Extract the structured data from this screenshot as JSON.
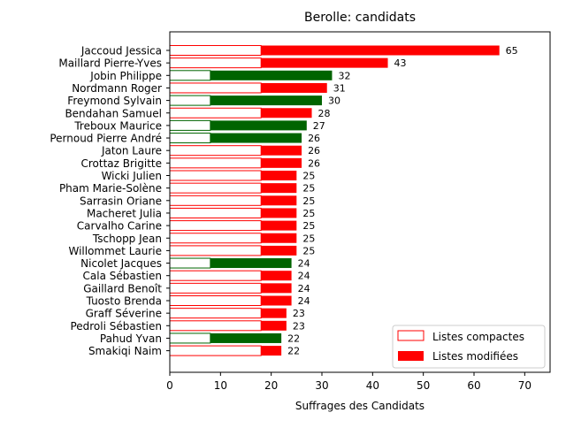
{
  "chart_data": {
    "type": "bar",
    "orientation": "horizontal",
    "stacked": true,
    "title": "Berolle: candidats",
    "xlabel": "Suffrages des Candidats",
    "ylabel": "",
    "xlim": [
      0,
      75
    ],
    "x_ticks": [
      0,
      10,
      20,
      30,
      40,
      50,
      60,
      70
    ],
    "grid": false,
    "legend_position": "lower-right",
    "colors": {
      "red": "#ff0000",
      "green": "#006400",
      "outline_red": "#ff0000",
      "outline_green": "#006400"
    },
    "series": [
      {
        "name": "Listes compactes",
        "style": "outline"
      },
      {
        "name": "Listes modifiées",
        "style": "filled"
      }
    ],
    "candidates": [
      {
        "name": "Jaccoud Jessica",
        "compact": 18,
        "modified": 47,
        "total": 65,
        "color": "red"
      },
      {
        "name": "Maillard Pierre-Yves",
        "compact": 18,
        "modified": 25,
        "total": 43,
        "color": "red"
      },
      {
        "name": "Jobin Philippe",
        "compact": 8,
        "modified": 24,
        "total": 32,
        "color": "green"
      },
      {
        "name": "Nordmann Roger",
        "compact": 18,
        "modified": 13,
        "total": 31,
        "color": "red"
      },
      {
        "name": "Freymond Sylvain",
        "compact": 8,
        "modified": 22,
        "total": 30,
        "color": "green"
      },
      {
        "name": "Bendahan Samuel",
        "compact": 18,
        "modified": 10,
        "total": 28,
        "color": "red"
      },
      {
        "name": "Treboux Maurice",
        "compact": 8,
        "modified": 19,
        "total": 27,
        "color": "green"
      },
      {
        "name": "Pernoud Pierre André",
        "compact": 8,
        "modified": 18,
        "total": 26,
        "color": "green"
      },
      {
        "name": "Jaton Laure",
        "compact": 18,
        "modified": 8,
        "total": 26,
        "color": "red"
      },
      {
        "name": "Crottaz Brigitte",
        "compact": 18,
        "modified": 8,
        "total": 26,
        "color": "red"
      },
      {
        "name": "Wicki Julien",
        "compact": 18,
        "modified": 7,
        "total": 25,
        "color": "red"
      },
      {
        "name": "Pham Marie-Solène",
        "compact": 18,
        "modified": 7,
        "total": 25,
        "color": "red"
      },
      {
        "name": "Sarrasin Oriane",
        "compact": 18,
        "modified": 7,
        "total": 25,
        "color": "red"
      },
      {
        "name": "Macheret Julia",
        "compact": 18,
        "modified": 7,
        "total": 25,
        "color": "red"
      },
      {
        "name": "Carvalho Carine",
        "compact": 18,
        "modified": 7,
        "total": 25,
        "color": "red"
      },
      {
        "name": "Tschopp Jean",
        "compact": 18,
        "modified": 7,
        "total": 25,
        "color": "red"
      },
      {
        "name": "Willommet Laurie",
        "compact": 18,
        "modified": 7,
        "total": 25,
        "color": "red"
      },
      {
        "name": "Nicolet Jacques",
        "compact": 8,
        "modified": 16,
        "total": 24,
        "color": "green"
      },
      {
        "name": "Cala Sébastien",
        "compact": 18,
        "modified": 6,
        "total": 24,
        "color": "red"
      },
      {
        "name": "Gaillard Benoît",
        "compact": 18,
        "modified": 6,
        "total": 24,
        "color": "red"
      },
      {
        "name": "Tuosto Brenda",
        "compact": 18,
        "modified": 6,
        "total": 24,
        "color": "red"
      },
      {
        "name": "Graff Séverine",
        "compact": 18,
        "modified": 5,
        "total": 23,
        "color": "red"
      },
      {
        "name": "Pedroli Sébastien",
        "compact": 18,
        "modified": 5,
        "total": 23,
        "color": "red"
      },
      {
        "name": "Pahud Yvan",
        "compact": 8,
        "modified": 14,
        "total": 22,
        "color": "green"
      },
      {
        "name": "Smakiqi Naim",
        "compact": 18,
        "modified": 4,
        "total": 22,
        "color": "red"
      }
    ]
  }
}
